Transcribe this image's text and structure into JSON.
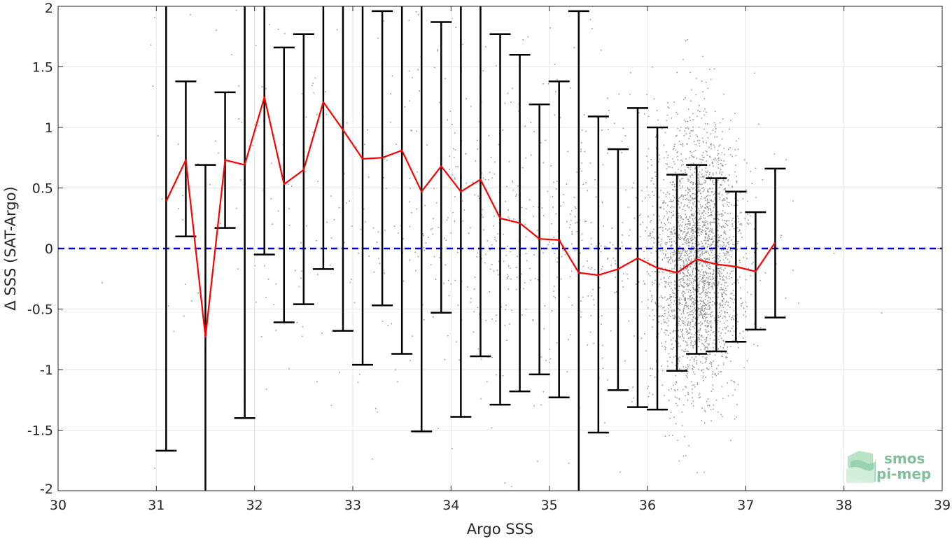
{
  "chart_data": {
    "type": "scatter",
    "xlabel": "Argo SSS",
    "ylabel": "Δ SSS (SAT-Argo)",
    "xlim": [
      30,
      39
    ],
    "ylim": [
      -2,
      2
    ],
    "x_ticks": [
      30,
      31,
      32,
      33,
      34,
      35,
      36,
      37,
      38,
      39
    ],
    "y_ticks": [
      2,
      1.5,
      1,
      0.5,
      0,
      -0.5,
      -1,
      -1.5,
      -2
    ],
    "x_tick_labels": [
      "30",
      "31",
      "32",
      "33",
      "34",
      "35",
      "36",
      "37",
      "38",
      "39"
    ],
    "y_tick_labels": [
      "2",
      "1.5",
      "1",
      "0.5",
      "0",
      "-0.5",
      "-1",
      "-1.5",
      "-2"
    ],
    "grid": true,
    "reference_line": {
      "y": 0,
      "color": "#0000cc",
      "style": "dashed"
    },
    "colors": {
      "mean_line": "#ff0000",
      "error_bars": "#000000",
      "points": "#999999"
    },
    "series": [
      {
        "type": "errorbar_line",
        "x": [
          31.1,
          31.3,
          31.5,
          31.7,
          31.9,
          32.1,
          32.3,
          32.5,
          32.7,
          32.9,
          33.1,
          33.3,
          33.5,
          33.7,
          33.9,
          34.1,
          34.3,
          34.5,
          34.7,
          34.9,
          35.1,
          35.3,
          35.5,
          35.7,
          35.9,
          36.1,
          36.3,
          36.5,
          36.7,
          36.9,
          37.1,
          37.3
        ],
        "mean": [
          0.39,
          0.73,
          -0.73,
          0.73,
          0.69,
          1.25,
          0.53,
          0.65,
          1.21,
          0.98,
          0.74,
          0.75,
          0.81,
          0.47,
          0.68,
          0.47,
          0.57,
          0.25,
          0.21,
          0.08,
          0.07,
          -0.2,
          -0.22,
          -0.17,
          -0.08,
          -0.16,
          -0.2,
          -0.09,
          -0.13,
          -0.15,
          -0.19,
          0.05
        ],
        "lower": [
          -1.67,
          0.1,
          -2.2,
          0.17,
          -1.4,
          -0.05,
          -0.61,
          -0.46,
          -0.17,
          -0.68,
          -0.96,
          -0.47,
          -0.87,
          -1.51,
          -0.53,
          -1.39,
          -0.89,
          -1.29,
          -1.18,
          -1.04,
          -1.23,
          -2.2,
          -1.52,
          -1.17,
          -1.31,
          -1.33,
          -1.01,
          -0.87,
          -0.85,
          -0.77,
          -0.67,
          -0.57
        ],
        "upper": [
          2.2,
          1.38,
          0.69,
          1.29,
          2.2,
          2.2,
          1.66,
          1.77,
          2.2,
          2.2,
          2.2,
          1.96,
          2.2,
          2.2,
          1.87,
          2.2,
          2.2,
          1.77,
          1.6,
          1.19,
          1.38,
          1.96,
          1.09,
          0.82,
          1.16,
          1.0,
          0.61,
          0.69,
          0.58,
          0.47,
          0.3,
          0.66
        ]
      },
      {
        "type": "scatter_cloud",
        "seed": 7,
        "clusters": [
          {
            "n": 2600,
            "x_center": 36.5,
            "x_spread": 0.22,
            "y_center": -0.1,
            "y_spread": 0.55
          },
          {
            "n": 500,
            "x_center": 35.3,
            "x_spread": 0.9,
            "y_center": 0.05,
            "y_spread": 0.6
          },
          {
            "n": 260,
            "x_center": 33.8,
            "x_spread": 1.2,
            "y_center": 0.45,
            "y_spread": 0.95
          },
          {
            "n": 60,
            "x_center": 31.8,
            "x_spread": 0.6,
            "y_center": 0.5,
            "y_spread": 1.0
          }
        ]
      }
    ]
  },
  "logo": {
    "line1": "smos",
    "line2": "pi-mep"
  }
}
